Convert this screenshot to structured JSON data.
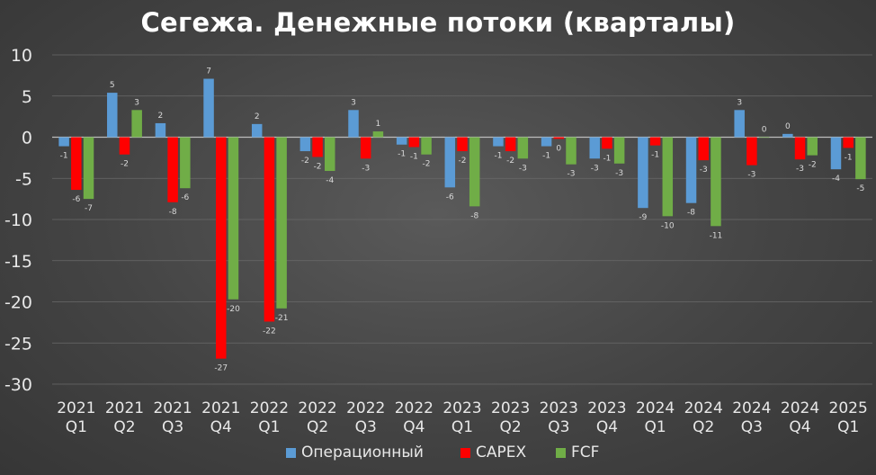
{
  "chart_data": {
    "type": "bar",
    "title": "Сегежа. Денежные потоки (кварталы)",
    "xlabel": "",
    "ylabel": "",
    "ylim": [
      -30,
      10
    ],
    "yticks": [
      10,
      5,
      0,
      -5,
      -10,
      -15,
      -20,
      -25,
      -30
    ],
    "grid": true,
    "legend_position": "bottom",
    "categories": [
      [
        "2021",
        "Q1"
      ],
      [
        "2021",
        "Q2"
      ],
      [
        "2021",
        "Q3"
      ],
      [
        "2021",
        "Q4"
      ],
      [
        "2022",
        "Q1"
      ],
      [
        "2022",
        "Q2"
      ],
      [
        "2022",
        "Q3"
      ],
      [
        "2022",
        "Q4"
      ],
      [
        "2023",
        "Q1"
      ],
      [
        "2023",
        "Q2"
      ],
      [
        "2023",
        "Q3"
      ],
      [
        "2023",
        "Q4"
      ],
      [
        "2024",
        "Q1"
      ],
      [
        "2024",
        "Q2"
      ],
      [
        "2024",
        "Q3"
      ],
      [
        "2024",
        "Q4"
      ],
      [
        "2025",
        "Q1"
      ]
    ],
    "series": [
      {
        "name": "Операционный",
        "color": "#5b9bd5",
        "values": [
          -1.1,
          5.4,
          1.7,
          7.1,
          1.6,
          -1.7,
          3.3,
          -0.9,
          -6.1,
          -1.1,
          -1.1,
          -2.6,
          -8.6,
          -8.0,
          3.3,
          0.4,
          -3.9
        ],
        "labels": [
          "-1",
          "5",
          "2",
          "7",
          "2",
          "-2",
          "3",
          "-1",
          "-6",
          "-1",
          "-1",
          "-3",
          "-9",
          "-8",
          "3",
          "0",
          "-4"
        ]
      },
      {
        "name": "CAPEX",
        "color": "#ff0000",
        "values": [
          -6.4,
          -2.1,
          -7.9,
          -26.9,
          -22.4,
          -2.4,
          -2.6,
          -1.2,
          -1.7,
          -1.7,
          -0.2,
          -1.4,
          -1.0,
          -2.8,
          -3.4,
          -2.7,
          -1.3
        ],
        "labels": [
          "-6",
          "-2",
          "-8",
          "-27",
          "-22",
          "-2",
          "-3",
          "-1",
          "-2",
          "-2",
          "0",
          "-1",
          "-1",
          "-3",
          "-3",
          "-3",
          "-1"
        ]
      },
      {
        "name": "FCF",
        "color": "#70ad47",
        "values": [
          -7.5,
          3.3,
          -6.2,
          -19.7,
          -20.8,
          -4.1,
          0.7,
          -2.1,
          -8.4,
          -2.6,
          -3.3,
          -3.2,
          -9.6,
          -10.8,
          0.0,
          -2.2,
          -5.1
        ],
        "labels": [
          "-7",
          "3",
          "-6",
          "-20",
          "-21",
          "-4",
          "1",
          "-2",
          "-8",
          "-3",
          "-3",
          "-3",
          "-10",
          "-11",
          "0",
          "-2",
          "-5"
        ]
      }
    ]
  }
}
